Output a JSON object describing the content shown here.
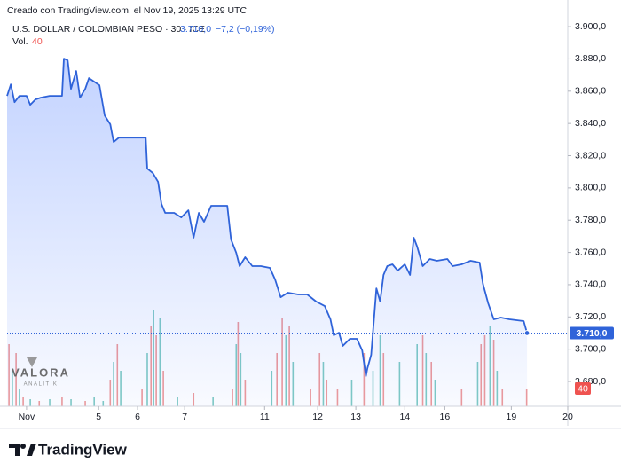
{
  "chart_data": {
    "type": "line",
    "credit": "Creado con TradingView.com, el Nov 19, 2025 13:29 UTC",
    "legend": {
      "symbol": "U.S. DOLLAR / COLOMBIAN PESO · 30 · ICE",
      "last": "3.710,0",
      "change": "−7,2 (−0,19%)",
      "vol_label": "Vol."
    },
    "watermark": [
      "VALORA",
      "ANALITIK"
    ],
    "footer": "TradingView",
    "color": "#2f63d9",
    "x": [
      0,
      1,
      2,
      3.3,
      5.2,
      6.2,
      7.6,
      9,
      11.4,
      14.7,
      15.2,
      16.2,
      17.1,
      18.5,
      19.5,
      20.9,
      21.9,
      23.3,
      24.7,
      26.1,
      27.6,
      28.5,
      29.9,
      37.1,
      37.5,
      39,
      40.4,
      41.3,
      42.3,
      44.7,
      46.6,
      48.5,
      49.9,
      51.3,
      52.7,
      54.6,
      56.5,
      58.9,
      59.9,
      61.3,
      62.2,
      63.7,
      65.6,
      67.9,
      70.3,
      71.7,
      73.2,
      75.1,
      77.9,
      80.3,
      82.7,
      85,
      86.5,
      87.4,
      88.8,
      89.8,
      91.7,
      93.6,
      95,
      96,
      96.4,
      97.4,
      98.8,
      99.8,
      100.7,
      101.7,
      103.1,
      104.5,
      106.4,
      107.8,
      108.8,
      109.7,
      111.2,
      113.1,
      115,
      117.8,
      119.2,
      121.6,
      124,
      126.4,
      127.3,
      128.7,
      130.2,
      132.1,
      134.4,
      138.2,
      139.1
    ],
    "values": [
      3857.1,
      3864.2,
      3853.2,
      3857.1,
      3857.1,
      3851.6,
      3854.9,
      3856.0,
      3857.1,
      3857.1,
      3880.2,
      3879.1,
      3861.5,
      3872.5,
      3856.0,
      3861.5,
      3868.1,
      3865.9,
      3863.7,
      3845.0,
      3839.5,
      3828.5,
      3831.2,
      3831.2,
      3812.0,
      3809.2,
      3803.7,
      3790.0,
      3784.5,
      3784.5,
      3781.7,
      3786.1,
      3769.1,
      3784.5,
      3779.0,
      3788.9,
      3788.9,
      3788.9,
      3768.0,
      3759.7,
      3751.5,
      3757.0,
      3751.5,
      3751.5,
      3750.4,
      3743.2,
      3732.2,
      3735.0,
      3733.9,
      3733.9,
      3729.5,
      3726.7,
      3718.5,
      3708.6,
      3710.2,
      3702.0,
      3706.4,
      3706.4,
      3699.2,
      3683.3,
      3688.2,
      3696.5,
      3737.7,
      3729.5,
      3746.0,
      3751.5,
      3752.6,
      3748.7,
      3752.6,
      3746.0,
      3769.1,
      3763.6,
      3751.5,
      3755.9,
      3754.8,
      3755.9,
      3751.5,
      3752.6,
      3754.8,
      3753.7,
      3740.5,
      3728.4,
      3718.5,
      3719.6,
      3718.5,
      3717.4,
      3710.0
    ],
    "xlim": [
      0,
      150
    ],
    "xticks": [
      {
        "value": 5.2,
        "label": "Nov"
      },
      {
        "value": 24.5,
        "label": "5"
      },
      {
        "value": 34.9,
        "label": "6"
      },
      {
        "value": 47.5,
        "label": "7"
      },
      {
        "value": 68.9,
        "label": "11"
      },
      {
        "value": 83.1,
        "label": "12"
      },
      {
        "value": 93.3,
        "label": "13"
      },
      {
        "value": 106.4,
        "label": "14"
      },
      {
        "value": 117.1,
        "label": "16"
      },
      {
        "value": 134.9,
        "label": "19"
      },
      {
        "value": 150,
        "label": "20"
      }
    ],
    "ylim": [
      3664.6,
      3908.3
    ],
    "yticks": [
      {
        "value": 3680,
        "label": "3.680,0"
      },
      {
        "value": 3700,
        "label": "3.700,0"
      },
      {
        "value": 3720,
        "label": "3.720,0"
      },
      {
        "value": 3740,
        "label": "3.740,0"
      },
      {
        "value": 3760,
        "label": "3.760,0"
      },
      {
        "value": 3780,
        "label": "3.780,0"
      },
      {
        "value": 3800,
        "label": "3.800,0"
      },
      {
        "value": 3820,
        "label": "3.820,0"
      },
      {
        "value": 3840,
        "label": "3.840,0"
      },
      {
        "value": 3860,
        "label": "3.860,0"
      },
      {
        "value": 3880,
        "label": "3.880,0"
      },
      {
        "value": 3900,
        "label": "3.900,0"
      }
    ],
    "volume": {
      "ylim": [
        0,
        886
      ],
      "x": [
        0.5,
        1.4,
        2.4,
        3.3,
        4.3,
        6.2,
        8.6,
        11.4,
        14.7,
        17.1,
        20.9,
        23.3,
        25.7,
        27.6,
        28.5,
        29.5,
        30.4,
        36.1,
        37.5,
        38.5,
        39.2,
        39.9,
        40.9,
        41.8,
        45.6,
        49.9,
        55.1,
        60.3,
        61.3,
        61.8,
        62.5,
        63.7,
        70.8,
        72.2,
        73.6,
        74.6,
        75.5,
        76.5,
        81.2,
        83.6,
        84.6,
        85.5,
        88.4,
        92.2,
        95.5,
        97.9,
        99.8,
        100.7,
        105,
        109.7,
        111.2,
        112.1,
        113.5,
        114.5,
        121.6,
        125.9,
        126.8,
        127.8,
        129.2,
        130.2,
        131.1,
        132.5,
        139
      ],
      "values": [
        140,
        80,
        120,
        40,
        20,
        16,
        12,
        16,
        20,
        16,
        12,
        20,
        12,
        60,
        100,
        140,
        80,
        40,
        120,
        180,
        216,
        160,
        200,
        80,
        20,
        30,
        20,
        40,
        140,
        190,
        120,
        60,
        80,
        120,
        200,
        160,
        180,
        100,
        40,
        120,
        100,
        60,
        40,
        60,
        120,
        80,
        160,
        120,
        100,
        140,
        160,
        120,
        100,
        60,
        40,
        100,
        140,
        160,
        180,
        150,
        80,
        40,
        40
      ],
      "value_labels": [
        null,
        null,
        null,
        null,
        null,
        null,
        null,
        null,
        null,
        null,
        null,
        null,
        null,
        null,
        null,
        null,
        null,
        null,
        null,
        null,
        null,
        null,
        null,
        null,
        null,
        null,
        null,
        null,
        null,
        null,
        null,
        null,
        null,
        null,
        null,
        null,
        null,
        null,
        null,
        null,
        null,
        null,
        null,
        null,
        null,
        null,
        null,
        null,
        null,
        null,
        null,
        null,
        null,
        null,
        null,
        null,
        null,
        null,
        null,
        null,
        null,
        null,
        "40"
      ],
      "colors": [
        "#ef9a9a",
        "#80cbc4",
        "#ef9a9a",
        "#80cbc4",
        "#ef9a9a",
        "#80cbc4",
        "#ef9a9a",
        "#80cbc4",
        "#ef9a9a",
        "#80cbc4",
        "#ef9a9a",
        "#80cbc4",
        "#80cbc4",
        "#ef9a9a",
        "#80cbc4",
        "#ef9a9a",
        "#80cbc4",
        "#ef9a9a",
        "#80cbc4",
        "#ef9a9a",
        "#80cbc4",
        "#ef9a9a",
        "#80cbc4",
        "#ef9a9a",
        "#80cbc4",
        "#ef9a9a",
        "#80cbc4",
        "#ef9a9a",
        "#80cbc4",
        "#ef9a9a",
        "#80cbc4",
        "#ef9a9a",
        "#80cbc4",
        "#ef9a9a",
        "#ef9a9a",
        "#80cbc4",
        "#ef9a9a",
        "#80cbc4",
        "#ef9a9a",
        "#ef9a9a",
        "#80cbc4",
        "#ef9a9a",
        "#ef9a9a",
        "#80cbc4",
        "#ef9a9a",
        "#80cbc4",
        "#80cbc4",
        "#ef9a9a",
        "#80cbc4",
        "#80cbc4",
        "#ef9a9a",
        "#80cbc4",
        "#ef9a9a",
        "#80cbc4",
        "#ef9a9a",
        "#80cbc4",
        "#ef9a9a",
        "#ef9a9a",
        "#80cbc4",
        "#ef9a9a",
        "#80cbc4",
        "#ef9a9a",
        "#ef9a9a"
      ]
    }
  }
}
